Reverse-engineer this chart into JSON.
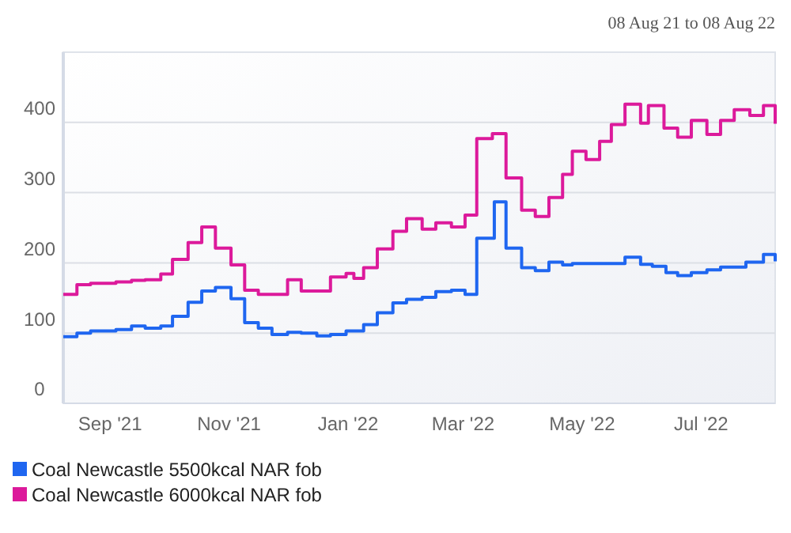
{
  "chart_data": {
    "type": "step",
    "annotations": [
      "08 Aug 21 to 08 Aug 22"
    ],
    "xlim": [
      "2021-08-08",
      "2022-08-08"
    ],
    "xticks": [
      {
        "value": "2021-09-01",
        "label": "Sep '21"
      },
      {
        "value": "2021-11-01",
        "label": "Nov '21"
      },
      {
        "value": "2022-01-01",
        "label": "Jan '22"
      },
      {
        "value": "2022-03-01",
        "label": "Mar '22"
      },
      {
        "value": "2022-05-01",
        "label": "May '22"
      },
      {
        "value": "2022-07-01",
        "label": "Jul '22"
      }
    ],
    "ylim": [
      0,
      500
    ],
    "yticks": [
      0,
      100,
      200,
      300,
      400
    ],
    "grid": "y",
    "legend": "bottom",
    "marker": "none",
    "line_style": "solid",
    "series": [
      {
        "name": "Coal Newcastle 5500kcal NAR fob",
        "color": "#1f66f0",
        "x": [
          "2021-08-08",
          "2021-08-15",
          "2021-08-22",
          "2021-09-04",
          "2021-09-12",
          "2021-09-19",
          "2021-09-27",
          "2021-10-03",
          "2021-10-11",
          "2021-10-18",
          "2021-10-25",
          "2021-11-02",
          "2021-11-09",
          "2021-11-16",
          "2021-11-23",
          "2021-12-01",
          "2021-12-08",
          "2021-12-16",
          "2021-12-23",
          "2021-12-31",
          "2022-01-09",
          "2022-01-16",
          "2022-01-24",
          "2022-01-31",
          "2022-02-08",
          "2022-02-15",
          "2022-02-23",
          "2022-03-02",
          "2022-03-08",
          "2022-03-17",
          "2022-03-23",
          "2022-03-31",
          "2022-04-07",
          "2022-04-14",
          "2022-04-21",
          "2022-04-26",
          "2022-05-23",
          "2022-05-31",
          "2022-06-06",
          "2022-06-13",
          "2022-06-19",
          "2022-06-26",
          "2022-07-04",
          "2022-07-11",
          "2022-07-24",
          "2022-08-02",
          "2022-08-08"
        ],
        "values": [
          95,
          100,
          103,
          105,
          110,
          107,
          110,
          124,
          144,
          160,
          165,
          149,
          115,
          107,
          98,
          101,
          100,
          96,
          98,
          103,
          112,
          129,
          143,
          148,
          151,
          159,
          161,
          155,
          235,
          287,
          221,
          193,
          189,
          201,
          197,
          199,
          208,
          198,
          195,
          186,
          182,
          186,
          190,
          194,
          201,
          212,
          202
        ]
      },
      {
        "name": "Coal Newcastle 6000kcal NAR fob",
        "color": "#dc1a9b",
        "x": [
          "2021-08-08",
          "2021-08-15",
          "2021-08-22",
          "2021-09-04",
          "2021-09-12",
          "2021-09-19",
          "2021-09-27",
          "2021-10-03",
          "2021-10-11",
          "2021-10-18",
          "2021-10-25",
          "2021-11-02",
          "2021-11-09",
          "2021-11-16",
          "2021-12-01",
          "2021-12-08",
          "2021-12-23",
          "2021-12-31",
          "2022-01-04",
          "2022-01-09",
          "2022-01-16",
          "2022-01-24",
          "2022-01-31",
          "2022-02-08",
          "2022-02-15",
          "2022-02-23",
          "2022-03-02",
          "2022-03-08",
          "2022-03-16",
          "2022-03-23",
          "2022-03-31",
          "2022-04-07",
          "2022-04-14",
          "2022-04-21",
          "2022-04-26",
          "2022-05-03",
          "2022-05-10",
          "2022-05-16",
          "2022-05-23",
          "2022-05-31",
          "2022-06-04",
          "2022-06-12",
          "2022-06-19",
          "2022-06-26",
          "2022-07-04",
          "2022-07-11",
          "2022-07-18",
          "2022-07-26",
          "2022-08-02",
          "2022-08-08"
        ],
        "values": [
          155,
          169,
          171,
          173,
          175,
          176,
          184,
          205,
          229,
          251,
          221,
          197,
          161,
          155,
          176,
          160,
          180,
          185,
          178,
          193,
          220,
          245,
          263,
          248,
          257,
          251,
          268,
          377,
          384,
          321,
          275,
          266,
          293,
          326,
          359,
          347,
          373,
          397,
          426,
          399,
          424,
          392,
          379,
          403,
          383,
          403,
          418,
          410,
          424,
          398
        ]
      }
    ]
  }
}
